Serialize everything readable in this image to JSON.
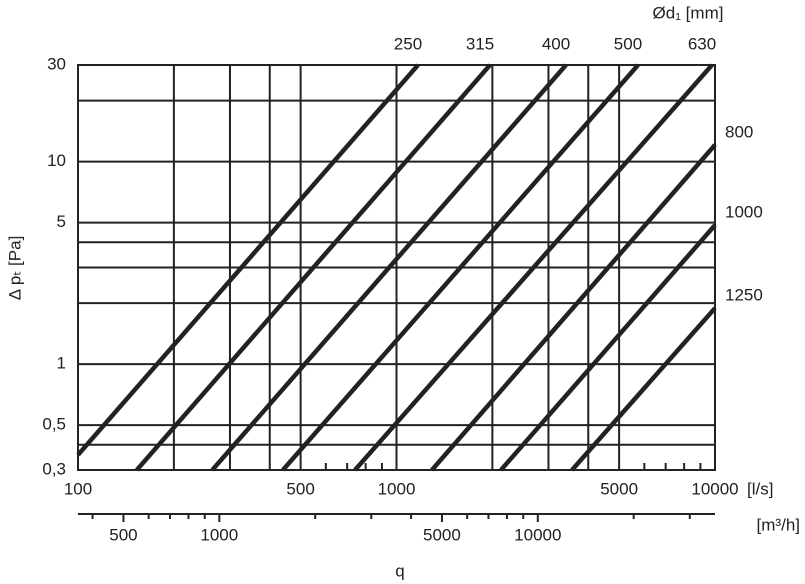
{
  "chart_data": {
    "type": "line",
    "title": "Ød₁ [mm]",
    "y_label": "Δ pₜ [Pa]",
    "x_label": "q",
    "x_unit": "[l/s]",
    "x2_unit": "[m³/h]",
    "xlog": true,
    "ylog": true,
    "grid": true,
    "xlim": [
      100,
      10000
    ],
    "ylim": [
      0.3,
      30
    ],
    "xticks": [
      100,
      500,
      1000,
      5000,
      10000
    ],
    "xticks_grid_minor": [
      200,
      300,
      400,
      2000,
      3000,
      4000
    ],
    "xticks_minor": [
      600,
      700,
      800,
      900,
      6000,
      7000,
      8000,
      9000
    ],
    "yticks": [
      30,
      10,
      5,
      1,
      {
        "value": 0.5,
        "label": "0,5"
      },
      {
        "value": 0.3,
        "label": "0,3"
      }
    ],
    "yticks_grid_minor": [
      20,
      4,
      3,
      2,
      0.4
    ],
    "x2lim": [
      360,
      36000
    ],
    "x2ticks": [
      500,
      1000,
      5000,
      10000
    ],
    "x2ticks_minor": [
      400,
      600,
      700,
      800,
      900,
      2000,
      3000,
      4000,
      6000,
      7000,
      8000,
      9000,
      20000,
      30000
    ],
    "series": [
      {
        "name": "250",
        "color": "#222222",
        "x": [
          100,
          1168
        ],
        "values": [
          0.356,
          30
        ]
      },
      {
        "name": "315",
        "color": "#222222",
        "x": [
          153,
          1966
        ],
        "values": [
          0.3,
          30
        ]
      },
      {
        "name": "400",
        "color": "#222222",
        "x": [
          264,
          3406
        ],
        "values": [
          0.3,
          30
        ]
      },
      {
        "name": "500",
        "color": "#222222",
        "x": [
          440,
          5731
        ],
        "values": [
          0.3,
          30
        ]
      },
      {
        "name": "630",
        "color": "#222222",
        "x": [
          741,
          9786
        ],
        "values": [
          0.3,
          30
        ]
      },
      {
        "name": "800",
        "color": "#222222",
        "x": [
          1292,
          10000
        ],
        "values": [
          0.3,
          12.1
        ]
      },
      {
        "name": "1000",
        "color": "#222222",
        "x": [
          2129,
          10000
        ],
        "values": [
          0.3,
          4.86
        ]
      },
      {
        "name": "1250",
        "color": "#222222",
        "x": [
          3556,
          10000
        ],
        "values": [
          0.3,
          1.89
        ]
      }
    ]
  }
}
